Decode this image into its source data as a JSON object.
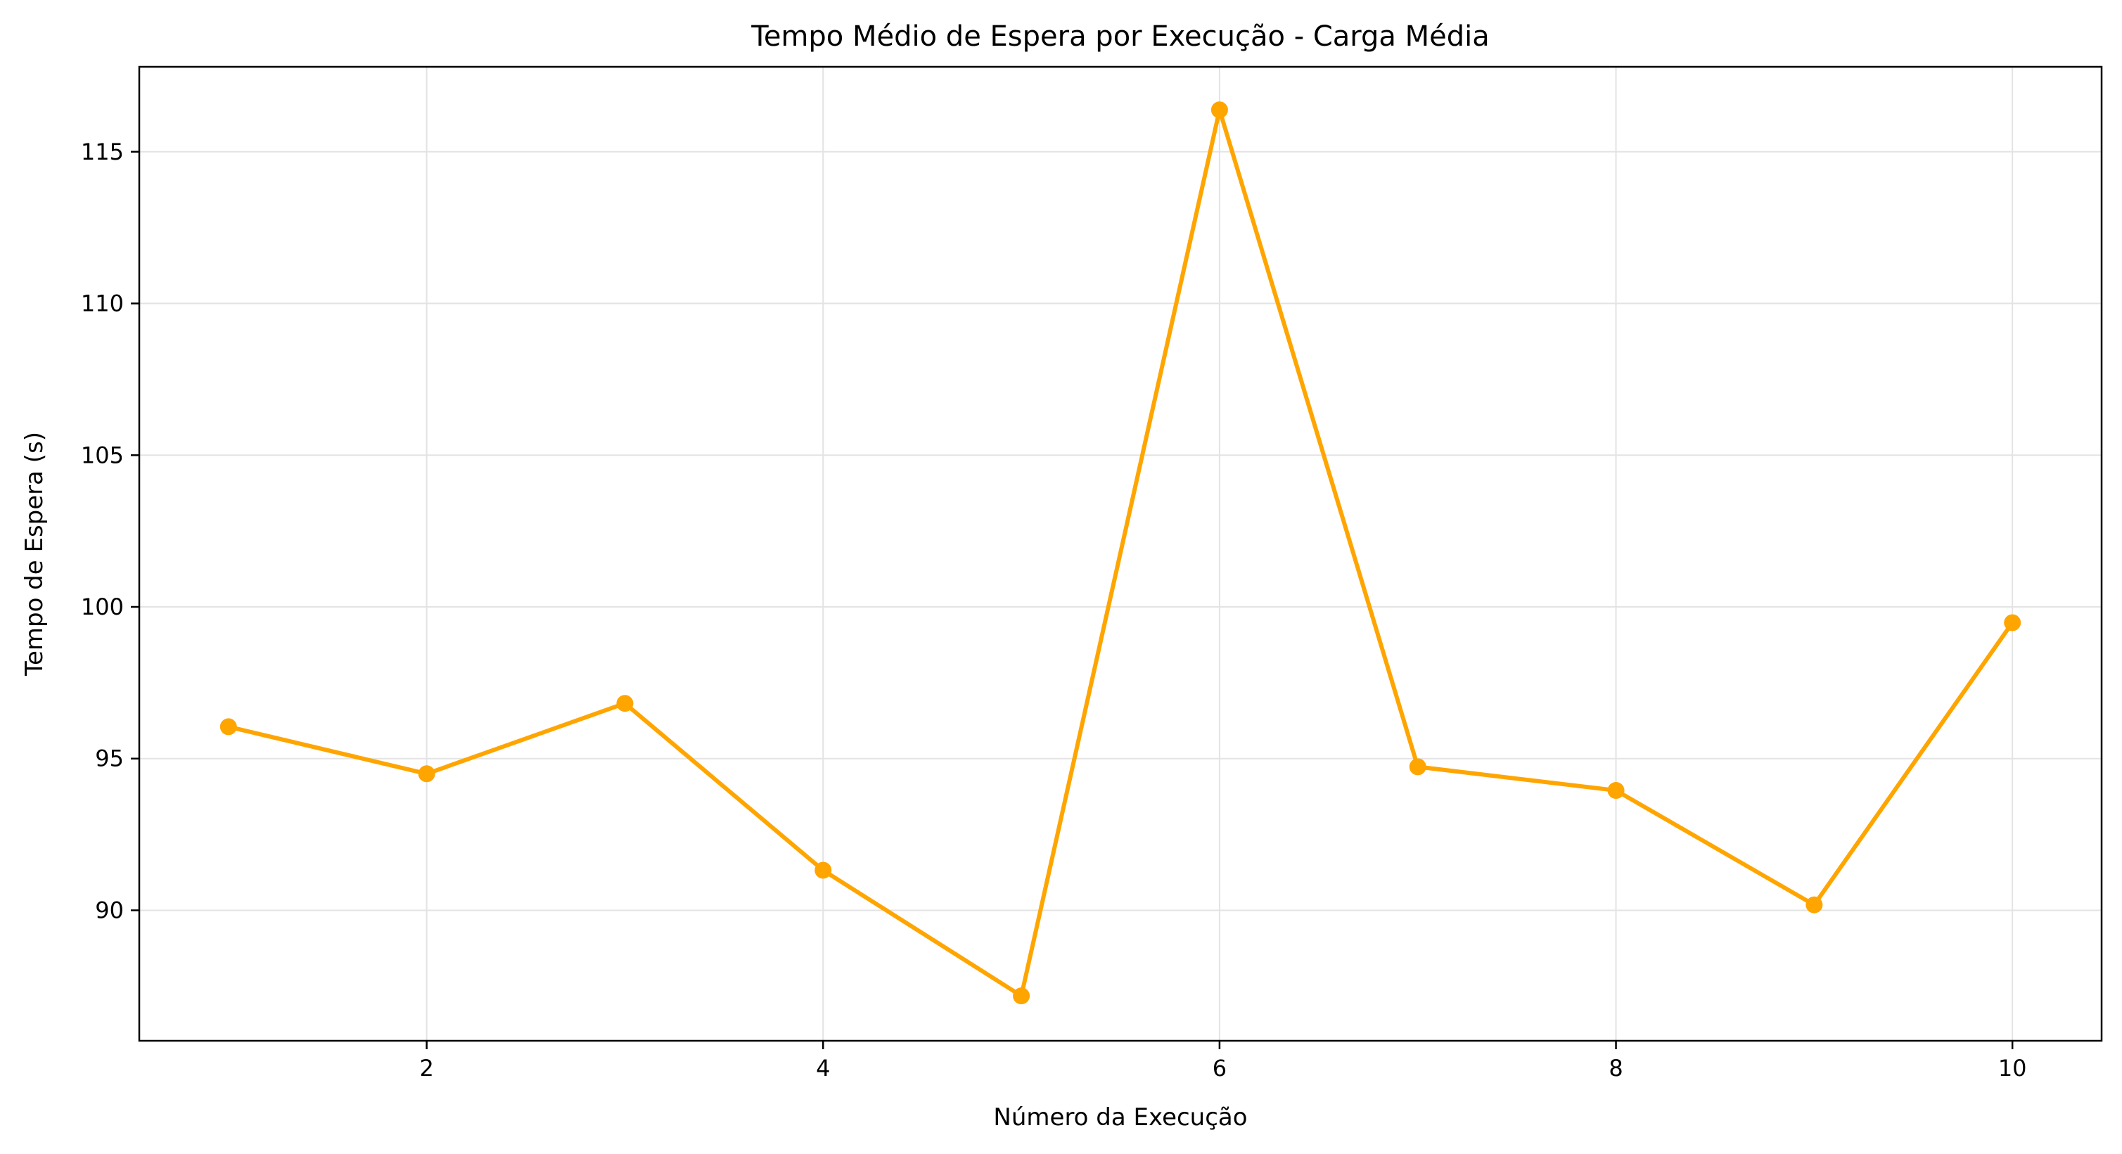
{
  "chart_data": {
    "type": "line",
    "title": "Tempo Médio de Espera por Execução - Carga Média",
    "xlabel": "Número da Execução",
    "ylabel": "Tempo de Espera (s)",
    "x": [
      1,
      2,
      3,
      4,
      5,
      6,
      7,
      8,
      9,
      10
    ],
    "series": [
      {
        "values": [
          96.05,
          94.5,
          96.82,
          91.32,
          87.18,
          116.38,
          94.73,
          93.95,
          90.18,
          99.48
        ],
        "color": "#FFA500",
        "marker": "circle"
      }
    ],
    "xlim": [
      0.55,
      10.45
    ],
    "ylim": [
      85.7,
      117.8
    ],
    "xticks": [
      2,
      4,
      6,
      8,
      10
    ],
    "yticks": [
      90,
      95,
      100,
      105,
      110,
      115
    ],
    "grid": true,
    "legend": "none"
  }
}
